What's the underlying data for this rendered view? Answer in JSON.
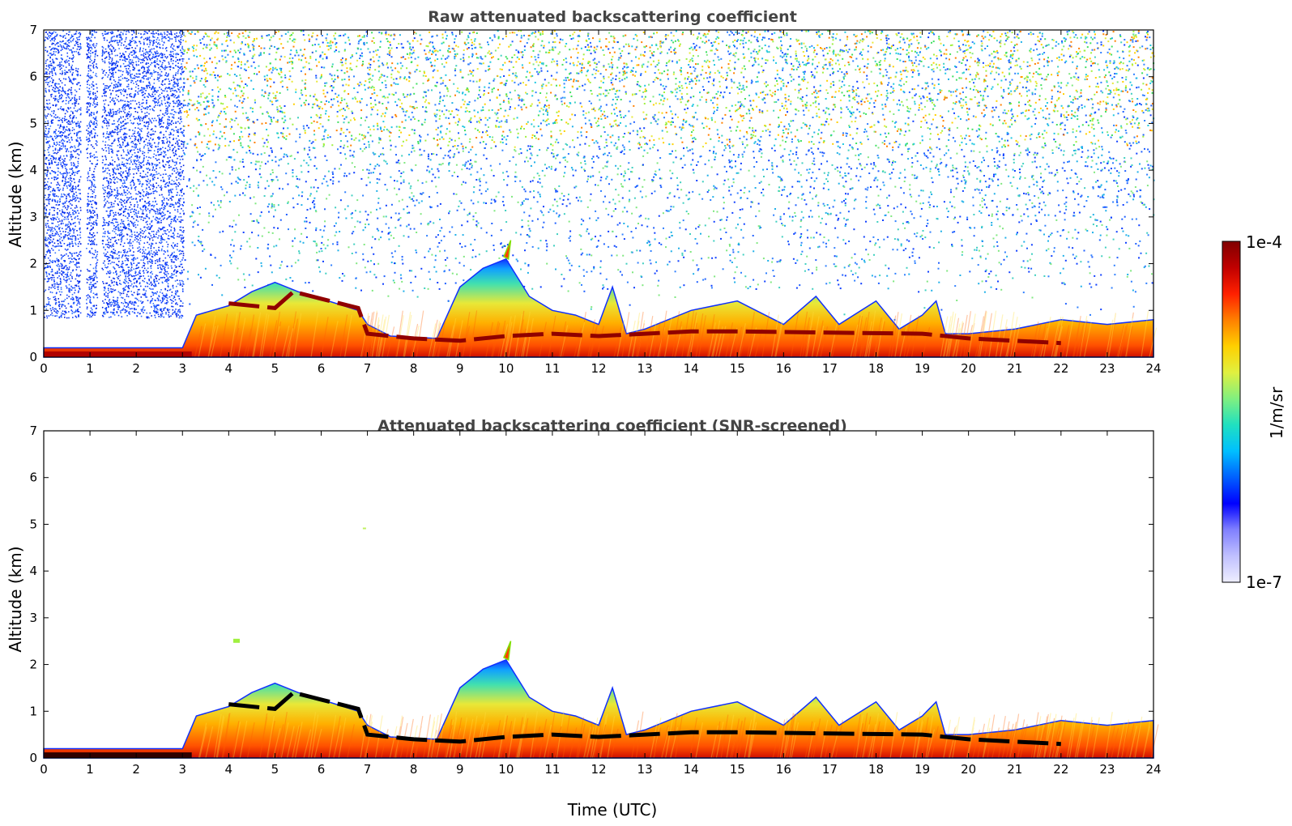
{
  "chart_data": [
    {
      "type": "heatmap",
      "title": "Raw attenuated backscattering coefficient",
      "xlabel": "",
      "ylabel": "Altitude (km)",
      "xlim": [
        0,
        24
      ],
      "ylim": [
        0,
        7
      ],
      "x_ticks": [
        "0",
        "1",
        "2",
        "3",
        "4",
        "5",
        "6",
        "7",
        "8",
        "9",
        "10",
        "11",
        "12",
        "13",
        "14",
        "15",
        "16",
        "17",
        "18",
        "19",
        "20",
        "21",
        "22",
        "23",
        "24"
      ],
      "y_ticks": [
        "0",
        "1",
        "2",
        "3",
        "4",
        "5",
        "6",
        "7"
      ],
      "layer_top_km": [
        [
          0,
          0.2
        ],
        [
          3,
          0.2
        ],
        [
          3.3,
          0.9
        ],
        [
          4,
          1.1
        ],
        [
          4.5,
          1.4
        ],
        [
          5,
          1.6
        ],
        [
          5.5,
          1.4
        ],
        [
          6,
          1.25
        ],
        [
          6.8,
          1.0
        ],
        [
          7,
          0.7
        ],
        [
          7.5,
          0.45
        ],
        [
          8.5,
          0.4
        ],
        [
          9,
          1.5
        ],
        [
          9.5,
          1.9
        ],
        [
          10,
          2.1
        ],
        [
          10.5,
          1.3
        ],
        [
          11,
          1.0
        ],
        [
          11.5,
          0.9
        ],
        [
          12,
          0.7
        ],
        [
          12.3,
          1.5
        ],
        [
          12.6,
          0.5
        ],
        [
          13,
          0.6
        ],
        [
          14,
          1.0
        ],
        [
          15,
          1.2
        ],
        [
          16,
          0.7
        ],
        [
          16.7,
          1.3
        ],
        [
          17.2,
          0.7
        ],
        [
          18,
          1.2
        ],
        [
          18.5,
          0.6
        ],
        [
          19,
          0.9
        ],
        [
          19.3,
          1.2
        ],
        [
          19.5,
          0.5
        ],
        [
          20,
          0.5
        ],
        [
          21,
          0.6
        ],
        [
          22,
          0.8
        ],
        [
          23,
          0.7
        ],
        [
          24,
          0.8
        ]
      ],
      "noise_region_note_hours": [
        0,
        3
      ]
    },
    {
      "type": "heatmap",
      "title": "Attenuated backscattering coefficient (SNR-screened)",
      "xlabel": "Time (UTC)",
      "ylabel": "Altitude (km)",
      "xlim": [
        0,
        24
      ],
      "ylim": [
        0,
        7
      ],
      "x_ticks": [
        "0",
        "1",
        "2",
        "3",
        "4",
        "5",
        "6",
        "7",
        "8",
        "9",
        "10",
        "11",
        "12",
        "13",
        "14",
        "15",
        "16",
        "17",
        "18",
        "19",
        "20",
        "21",
        "22",
        "23",
        "24"
      ],
      "y_ticks": [
        "0",
        "1",
        "2",
        "3",
        "4",
        "5",
        "6",
        "7"
      ],
      "layer_top_km": [
        [
          0,
          0.2
        ],
        [
          3,
          0.2
        ],
        [
          3.3,
          0.9
        ],
        [
          4,
          1.1
        ],
        [
          4.5,
          1.4
        ],
        [
          5,
          1.6
        ],
        [
          5.5,
          1.4
        ],
        [
          6,
          1.25
        ],
        [
          6.8,
          1.0
        ],
        [
          7,
          0.7
        ],
        [
          7.5,
          0.45
        ],
        [
          8.5,
          0.4
        ],
        [
          9,
          1.5
        ],
        [
          9.5,
          1.9
        ],
        [
          10,
          2.1
        ],
        [
          10.5,
          1.3
        ],
        [
          11,
          1.0
        ],
        [
          11.5,
          0.9
        ],
        [
          12,
          0.7
        ],
        [
          12.3,
          1.5
        ],
        [
          12.6,
          0.5
        ],
        [
          13,
          0.6
        ],
        [
          14,
          1.0
        ],
        [
          15,
          1.2
        ],
        [
          16,
          0.7
        ],
        [
          16.7,
          1.3
        ],
        [
          17.2,
          0.7
        ],
        [
          18,
          1.2
        ],
        [
          18.5,
          0.6
        ],
        [
          19,
          0.9
        ],
        [
          19.3,
          1.2
        ],
        [
          19.5,
          0.5
        ],
        [
          20,
          0.5
        ],
        [
          21,
          0.6
        ],
        [
          22,
          0.8
        ],
        [
          23,
          0.7
        ],
        [
          24,
          0.8
        ]
      ],
      "cloud_base_km": [
        [
          4,
          1.15
        ],
        [
          5,
          1.05
        ],
        [
          5.4,
          1.4
        ],
        [
          6,
          1.25
        ],
        [
          6.8,
          1.05
        ],
        [
          7,
          0.5
        ],
        [
          8,
          0.4
        ],
        [
          9,
          0.35
        ],
        [
          10,
          0.45
        ],
        [
          11,
          0.5
        ],
        [
          12,
          0.45
        ],
        [
          13,
          0.5
        ],
        [
          14,
          0.55
        ],
        [
          15,
          0.55
        ],
        [
          19,
          0.5
        ],
        [
          20,
          0.4
        ],
        [
          21,
          0.35
        ],
        [
          22,
          0.3
        ]
      ]
    }
  ],
  "colorbar": {
    "label": "1/m/sr",
    "top_label": "1e-4",
    "bottom_label": "1e-7",
    "scale": "log",
    "colors": [
      "#eeeeff",
      "#c0c0ff",
      "#8080ff",
      "#0000ff",
      "#0060ff",
      "#00c0ff",
      "#20e0c0",
      "#80f080",
      "#e0f040",
      "#ffd000",
      "#ff8000",
      "#ff2000",
      "#c00000",
      "#800000"
    ]
  }
}
